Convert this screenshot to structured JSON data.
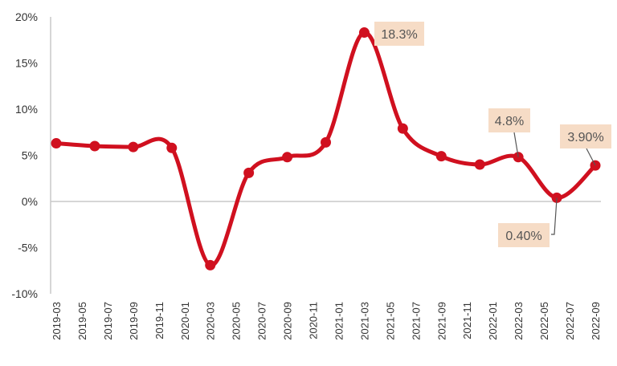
{
  "chart_data": {
    "type": "line",
    "title": "",
    "xlabel": "",
    "ylabel": "",
    "ylim": [
      -10,
      20
    ],
    "y_ticks": [
      "20%",
      "15%",
      "10%",
      "5%",
      "0%",
      "-5%",
      "-10%"
    ],
    "y_tick_values": [
      20,
      15,
      10,
      5,
      0,
      -5,
      -10
    ],
    "categories": [
      "2019-03",
      "2019-05",
      "2019-07",
      "2019-09",
      "2019-11",
      "2020-01",
      "2020-03",
      "2020-05",
      "2020-07",
      "2020-09",
      "2020-11",
      "2021-01",
      "2021-03",
      "2021-05",
      "2021-07",
      "2021-09",
      "2021-11",
      "2022-01",
      "2022-03",
      "2022-05",
      "2022-07",
      "2022-09"
    ],
    "series": [
      {
        "x": [
          "2019-03",
          "2019-06",
          "2019-09",
          "2019-12",
          "2020-03",
          "2020-06",
          "2020-09",
          "2020-12",
          "2021-03",
          "2021-06",
          "2021-09",
          "2021-12",
          "2022-03",
          "2022-06",
          "2022-09"
        ],
        "values": [
          6.3,
          6.0,
          5.9,
          5.8,
          -6.9,
          3.1,
          4.8,
          6.4,
          18.3,
          7.9,
          4.9,
          4.0,
          4.8,
          0.4,
          3.9
        ]
      }
    ],
    "annotations": [
      {
        "text": "18.3%",
        "x": "2021-03"
      },
      {
        "text": "4.8%",
        "x": "2022-03"
      },
      {
        "text": "0.40%",
        "x": "2022-06"
      },
      {
        "text": "3.90%",
        "x": "2022-09"
      }
    ],
    "grid": false,
    "colors": {
      "line": "#d0101f",
      "callout_bg": "#f6dcc6",
      "axis": "#c8c8c8"
    }
  }
}
